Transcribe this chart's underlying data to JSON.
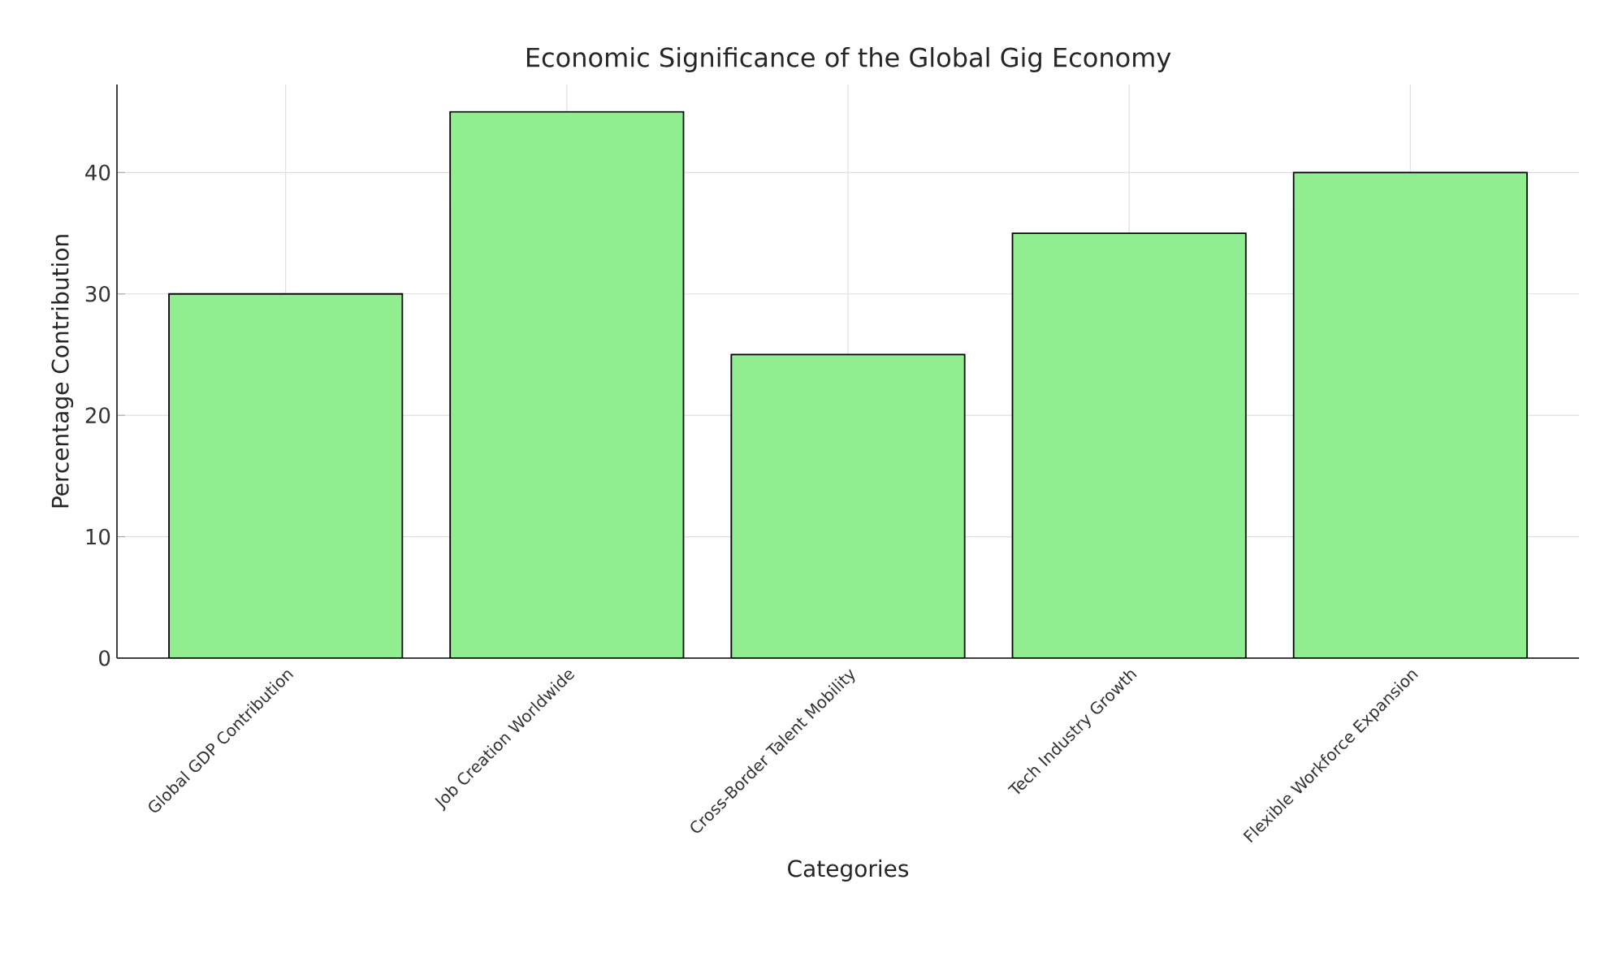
{
  "chart_data": {
    "type": "bar",
    "title": "Economic Significance of the Global Gig Economy",
    "xlabel": "Categories",
    "ylabel": "Percentage Contribution",
    "categories": [
      "Global GDP Contribution",
      "Job Creation Worldwide",
      "Cross-Border Talent Mobility",
      "Tech Industry Growth",
      "Flexible Workforce Expansion"
    ],
    "values": [
      30,
      45,
      25,
      35,
      40
    ],
    "color": "#90ee90",
    "ylim": [
      0,
      47.25
    ],
    "yticks": [
      0,
      10,
      20,
      30,
      40
    ],
    "grid": true
  }
}
